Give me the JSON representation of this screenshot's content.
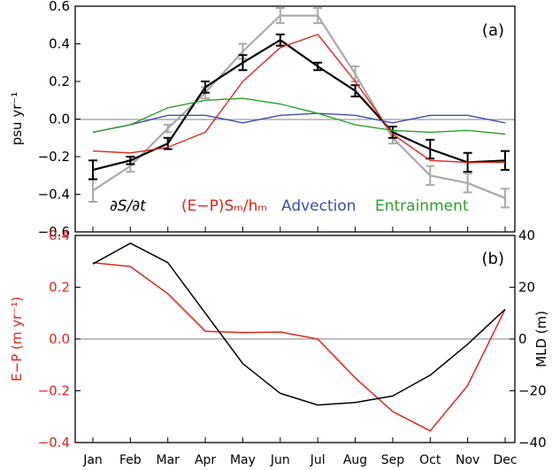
{
  "chart_data": [
    {
      "type": "line",
      "panel_label": "(a)",
      "ylabel": "psu yr⁻¹",
      "ylim": [
        -0.6,
        0.6
      ],
      "yticks": [
        "0.6",
        "0.4",
        "0.2",
        "0.0",
        "−0.2",
        "−0.4",
        "−0.6"
      ],
      "ytick_values": [
        0.6,
        0.4,
        0.2,
        0.0,
        -0.2,
        -0.4,
        -0.6
      ],
      "categories": [
        "Jan",
        "Feb",
        "Mar",
        "Apr",
        "May",
        "Jun",
        "Jul",
        "Aug",
        "Sep",
        "Oct",
        "Nov",
        "Dec"
      ],
      "zero_line": true,
      "legend_items": [
        {
          "name": "∂S/∂t",
          "color": "#000000"
        },
        {
          "name": "(E−P)Sₘ/hₘ",
          "color": "#e0241b"
        },
        {
          "name": "Advection",
          "color": "#3b4fa6"
        },
        {
          "name": "Entrainment",
          "color": "#2ca02c"
        }
      ],
      "legend_position": "bottom",
      "series": [
        {
          "color": "#aaaaaa",
          "values": [
            -0.38,
            -0.25,
            -0.05,
            0.14,
            0.36,
            0.55,
            0.55,
            0.24,
            -0.1,
            -0.3,
            -0.34,
            -0.42
          ],
          "errors": [
            0.06,
            0.03,
            0.02,
            0.03,
            0.04,
            0.04,
            0.04,
            0.04,
            0.03,
            0.05,
            0.05,
            0.05
          ]
        },
        {
          "color": "#000000",
          "values": [
            -0.27,
            -0.22,
            -0.13,
            0.17,
            0.3,
            0.42,
            0.28,
            0.15,
            -0.07,
            -0.16,
            -0.23,
            -0.22
          ],
          "errors": [
            0.05,
            0.02,
            0.03,
            0.03,
            0.04,
            0.03,
            0.02,
            0.03,
            0.03,
            0.05,
            0.05,
            0.05
          ]
        },
        {
          "color": "#e0241b",
          "values": [
            -0.17,
            -0.18,
            -0.15,
            -0.07,
            0.2,
            0.38,
            0.45,
            0.2,
            -0.08,
            -0.22,
            -0.23,
            -0.23
          ]
        },
        {
          "color": "#3b4fa6",
          "values": [
            -0.07,
            -0.03,
            0.02,
            0.02,
            -0.02,
            0.02,
            0.03,
            0.02,
            -0.02,
            0.02,
            0.02,
            -0.02
          ]
        },
        {
          "color": "#2ca02c",
          "values": [
            -0.07,
            -0.03,
            0.06,
            0.1,
            0.11,
            0.08,
            0.03,
            -0.03,
            -0.06,
            -0.07,
            -0.06,
            -0.08
          ]
        }
      ]
    },
    {
      "type": "line",
      "panel_label": "(b)",
      "ylabel_left": "E−P (m yr⁻¹)",
      "ylabel_right": "MLD (m)",
      "ylim_left": [
        -0.4,
        0.4
      ],
      "ylim_right": [
        -40,
        40
      ],
      "yticks_left": [
        "0.4",
        "0.2",
        "0.0",
        "−0.2",
        "−0.4"
      ],
      "yticks_left_values": [
        0.4,
        0.2,
        0.0,
        -0.2,
        -0.4
      ],
      "yticks_right": [
        "40",
        "20",
        "0",
        "−20",
        "−40"
      ],
      "yticks_right_values": [
        40,
        20,
        0,
        -20,
        -40
      ],
      "categories": [
        "Jan",
        "Feb",
        "Mar",
        "Apr",
        "May",
        "Jun",
        "Jul",
        "Aug",
        "Sep",
        "Oct",
        "Nov",
        "Dec"
      ],
      "zero_line": true,
      "series": [
        {
          "axis": "left",
          "color": "#e0241b",
          "values": [
            0.295,
            0.28,
            0.175,
            0.03,
            0.025,
            0.027,
            0.0,
            -0.15,
            -0.28,
            -0.355,
            -0.18,
            0.115
          ]
        },
        {
          "axis": "right",
          "color": "#000000",
          "values": [
            29,
            37,
            29.5,
            10,
            -9.5,
            -21,
            -25.5,
            -24.5,
            -22,
            -14,
            -2,
            11.5
          ]
        }
      ]
    }
  ]
}
